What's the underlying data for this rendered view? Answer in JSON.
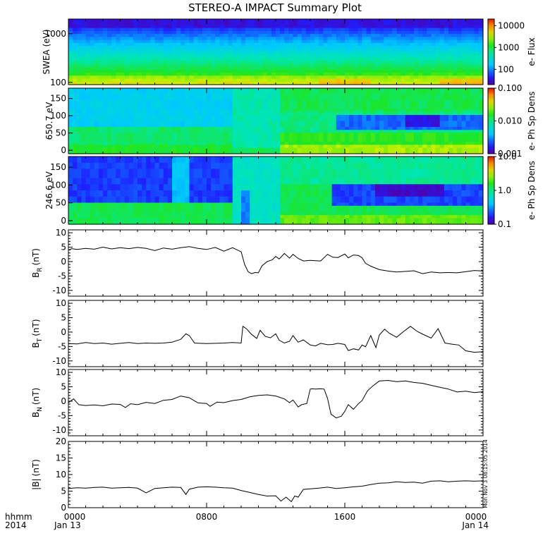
{
  "title": "STEREO-A IMPACT Summary Plot",
  "footer": {
    "left_line1": "hhmm",
    "left_line2": "2014",
    "start_date": "Jan 13",
    "end_date": "Jan 14"
  },
  "stamp": "Mon Nov  3 08:15:05 2014",
  "x_axis": {
    "range_hours": [
      0,
      24
    ],
    "ticks": [
      0,
      8,
      16,
      24
    ],
    "tick_labels": [
      "0000",
      "0800",
      "1600",
      "0000"
    ]
  },
  "spectrograms": [
    {
      "ylabel": "SWEA (eV)",
      "scale": "log",
      "yrange": [
        90,
        2000
      ],
      "yticks": [
        100,
        1000
      ],
      "ytick_labels": [
        "100",
        "1000"
      ],
      "colorbar_label": "e- Flux",
      "colorbar_scale": "log",
      "colorbar_ticks": [
        "100",
        "1000",
        "10000"
      ],
      "colorbar_tick_values": [
        100,
        1000,
        10000
      ],
      "colorbar_range": [
        20,
        20000
      ]
    },
    {
      "ylabel": "650.7 eV",
      "scale": "linear",
      "yrange": [
        -10,
        180
      ],
      "yticks": [
        0,
        50,
        100,
        150
      ],
      "ytick_labels": [
        "0",
        "50",
        "100",
        "150"
      ],
      "colorbar_label": "e- Ph Sp Dens",
      "colorbar_scale": "log",
      "colorbar_ticks": [
        "0.001",
        "0.010",
        "0.100"
      ],
      "colorbar_tick_values": [
        0.001,
        0.01,
        0.1
      ],
      "colorbar_range": [
        0.001,
        0.1
      ]
    },
    {
      "ylabel": "246.6 eV",
      "scale": "linear",
      "yrange": [
        -10,
        180
      ],
      "yticks": [
        0,
        50,
        100,
        150
      ],
      "ytick_labels": [
        "0",
        "50",
        "100",
        "150"
      ],
      "colorbar_label": "e- Ph Sp Dens",
      "colorbar_scale": "log",
      "colorbar_ticks": [
        "0.1",
        "1.0",
        "10.0"
      ],
      "colorbar_tick_values": [
        0.1,
        1,
        10
      ],
      "colorbar_range": [
        0.1,
        10
      ]
    }
  ],
  "chart_data": [
    {
      "type": "heatmap",
      "id": "swea_energy",
      "ylabel": "SWEA (eV)",
      "colorbar_label": "e- Flux",
      "x_range_hours": [
        0,
        24
      ],
      "y_range": [
        90,
        2000
      ]
    },
    {
      "type": "heatmap",
      "id": "pad_650",
      "ylabel": "650.7 eV",
      "colorbar_label": "e- Ph Sp Dens",
      "x_range_hours": [
        0,
        24
      ],
      "y_range": [
        0,
        180
      ]
    },
    {
      "type": "heatmap",
      "id": "pad_246",
      "ylabel": "246.6 eV",
      "colorbar_label": "e- Ph Sp Dens",
      "x_range_hours": [
        0,
        24
      ],
      "y_range": [
        0,
        180
      ]
    },
    {
      "type": "line",
      "id": "br",
      "ylabel": "B_R (nT)",
      "ylabel_main": "B",
      "ylabel_sub": "R",
      "ylabel_unit": "(nT)",
      "ylim": [
        -12,
        11
      ],
      "yticks": [
        -10,
        -5,
        0,
        5,
        10
      ],
      "x": [
        0,
        0.2,
        0.5,
        1,
        1.5,
        2,
        2.5,
        3,
        3.5,
        4,
        4.5,
        5,
        5.5,
        6,
        6.5,
        7,
        7.5,
        8,
        8.5,
        9,
        9.5,
        10,
        10.2,
        10.4,
        10.6,
        10.8,
        11,
        11.2,
        11.5,
        11.8,
        12,
        12.2,
        12.5,
        12.8,
        13,
        13.3,
        13.6,
        14,
        14.3,
        14.6,
        15,
        15.3,
        15.6,
        16,
        16.2,
        16.5,
        16.8,
        17,
        17.2,
        17.5,
        18,
        18.5,
        19,
        19.5,
        20,
        20.5,
        21,
        21.5,
        22,
        22.5,
        23,
        23.5,
        24
      ],
      "y": [
        4,
        4.5,
        4.2,
        4.6,
        4.3,
        5,
        4.4,
        4.8,
        4.5,
        4.9,
        4.6,
        3.8,
        4.7,
        4.3,
        4.8,
        5.2,
        4.6,
        4.2,
        4.9,
        3.6,
        4.8,
        3.4,
        -1,
        -3.5,
        -4.2,
        -3.8,
        -3.9,
        -1.5,
        0,
        0.6,
        1.8,
        0.9,
        2.8,
        1.2,
        2.5,
        1.1,
        0.2,
        0.4,
        0.3,
        0.2,
        2.5,
        1.5,
        1.4,
        2.6,
        1.3,
        2.3,
        2.1,
        1.3,
        -0.6,
        -1.6,
        -2.8,
        -3.3,
        -3.6,
        -3.4,
        -3.2,
        -4.2,
        -3.6,
        -3.9,
        -3.8,
        -3.9,
        -3.5,
        -3.1,
        -3.3
      ]
    },
    {
      "type": "line",
      "id": "bt",
      "ylabel": "B_T (nT)",
      "ylabel_main": "B",
      "ylabel_sub": "T",
      "ylabel_unit": "(nT)",
      "ylim": [
        -12,
        11
      ],
      "yticks": [
        -10,
        -5,
        0,
        5,
        10
      ],
      "x": [
        0,
        0.5,
        1,
        1.5,
        2,
        2.5,
        3,
        3.5,
        4,
        4.5,
        5,
        5.5,
        6,
        6.5,
        6.8,
        7,
        7.3,
        7.6,
        8,
        8.5,
        9,
        9.5,
        10,
        10.1,
        10.3,
        10.6,
        10.9,
        11.1,
        11.4,
        11.7,
        12,
        12.2,
        12.5,
        12.8,
        13,
        13.3,
        13.6,
        14,
        14.3,
        14.6,
        15,
        15.3,
        15.6,
        16,
        16.2,
        16.5,
        16.8,
        17,
        17.2,
        17.5,
        17.8,
        18,
        18.3,
        18.6,
        19,
        19.4,
        19.8,
        20.2,
        20.6,
        21,
        21.4,
        21.8,
        22.2,
        22.6,
        23,
        23.5,
        24
      ],
      "y": [
        -4,
        -4.1,
        -3.6,
        -4,
        -3.8,
        -4.2,
        -3.9,
        -3.6,
        -4,
        -3.8,
        -3.9,
        -3.8,
        -3.5,
        -2.5,
        -0.6,
        -1.2,
        -3.8,
        -3.9,
        -4,
        -3.9,
        -3.8,
        -3.6,
        -3.8,
        2,
        1.2,
        -0.8,
        -2.2,
        0.6,
        -1.5,
        -2,
        -0.6,
        -2.8,
        -3.8,
        -3.2,
        -1.2,
        -3.5,
        -2.7,
        -4.5,
        -4.8,
        -3.9,
        -4.4,
        -4.3,
        -3.9,
        -4.3,
        -6.4,
        -5.8,
        -6.2,
        -4.5,
        -5.1,
        -1.2,
        -5.4,
        -1,
        1,
        -0.5,
        -1.8,
        0.2,
        2,
        0.2,
        -1,
        -2.1,
        1.2,
        -3.8,
        -4.2,
        -4.5,
        -6.5,
        -7,
        -6.8
      ]
    },
    {
      "type": "line",
      "id": "bn",
      "ylabel": "B_N (nT)",
      "ylabel_main": "B",
      "ylabel_sub": "N",
      "ylabel_unit": "(nT)",
      "ylim": [
        -12,
        11
      ],
      "yticks": [
        -10,
        -5,
        0,
        5,
        10
      ],
      "x": [
        0,
        0.3,
        0.6,
        1,
        1.5,
        2,
        2.5,
        3,
        3.3,
        3.6,
        4,
        4.5,
        5,
        5.5,
        6,
        6.5,
        7,
        7.5,
        8,
        8.2,
        8.6,
        9,
        9.5,
        10,
        10.5,
        11,
        11.5,
        12,
        12.5,
        12.8,
        13,
        13.3,
        13.5,
        13.8,
        14,
        14.1,
        14.3,
        14.6,
        14.8,
        15,
        15.2,
        15.5,
        15.8,
        16,
        16.2,
        16.5,
        16.8,
        17,
        17.3,
        17.6,
        18,
        18.5,
        19,
        19.5,
        20,
        20.5,
        21,
        21.5,
        22,
        22.5,
        23,
        23.5,
        24
      ],
      "y": [
        -0.5,
        0.8,
        -1.2,
        -1.5,
        -1.3,
        -1.6,
        -1,
        -1.1,
        -2.2,
        -0.9,
        -1.2,
        -0.4,
        -0.8,
        0.3,
        0.6,
        1.8,
        1.2,
        -0.6,
        -0.8,
        -1.8,
        -0.3,
        -0.5,
        0.2,
        0.6,
        1.5,
        2,
        2.2,
        1.8,
        0.8,
        -0.5,
        0.4,
        -2,
        -1.2,
        -0.8,
        4.2,
        4.3,
        4.2,
        4.3,
        4.2,
        1,
        -4.5,
        -5.8,
        -5.2,
        -3.5,
        -1.2,
        -2.8,
        -0.8,
        0.2,
        3.5,
        5.2,
        7,
        7.2,
        6.8,
        7,
        6.5,
        6.2,
        5.5,
        4.8,
        4.2,
        3.2,
        3.5,
        3,
        3.3
      ]
    },
    {
      "type": "line",
      "id": "bmag",
      "ylabel": "|B| (nT)",
      "ylabel_main": "|B|",
      "ylabel_sub": "",
      "ylabel_unit": "(nT)",
      "ylim": [
        0,
        20
      ],
      "yticks": [
        0,
        5,
        10,
        15,
        20
      ],
      "x": [
        0,
        0.5,
        1,
        1.5,
        2,
        2.5,
        3,
        3.5,
        4,
        4.5,
        5,
        5.5,
        6,
        6.5,
        6.8,
        7,
        7.5,
        8,
        8.5,
        9,
        9.5,
        10,
        10.5,
        11,
        11.5,
        12,
        12.3,
        12.6,
        12.9,
        13.1,
        13.3,
        13.6,
        14,
        14.5,
        15,
        15.5,
        16,
        16.5,
        17,
        17.5,
        18,
        18.5,
        19,
        19.5,
        20,
        20.5,
        21,
        21.5,
        22,
        22.5,
        23,
        23.5,
        24
      ],
      "y": [
        5.8,
        6,
        5.9,
        6.1,
        6.2,
        5.9,
        6,
        6.1,
        5.9,
        4.5,
        5.8,
        6,
        6.2,
        6.1,
        4,
        5.6,
        6.2,
        6.3,
        6.2,
        6,
        5.9,
        5.2,
        4.6,
        4,
        3.5,
        3.6,
        2,
        3.2,
        1.8,
        3.5,
        3.2,
        5.5,
        5.7,
        5.9,
        6.2,
        5.8,
        6,
        6.3,
        6.5,
        7,
        7.4,
        7.5,
        7.8,
        7.6,
        7.7,
        7.4,
        8,
        8.1,
        7.8,
        8,
        8.1,
        8,
        8.1
      ]
    }
  ]
}
